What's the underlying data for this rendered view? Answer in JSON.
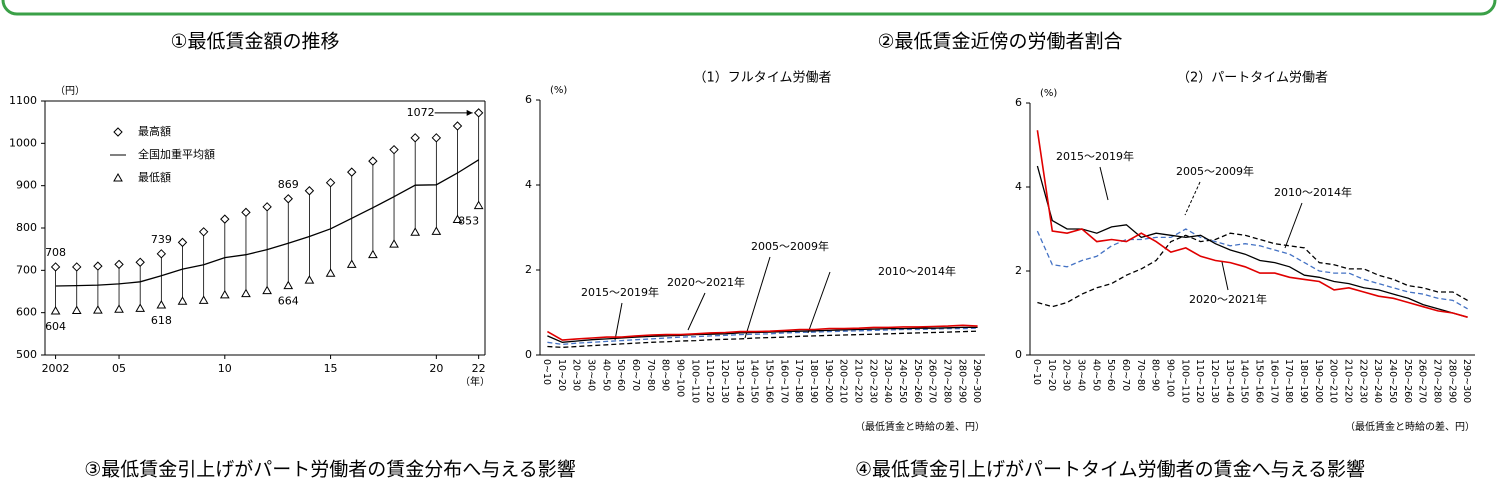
{
  "headings": [
    "①最低賃金額の推移",
    "②最低賃金近傍の労働者割合",
    "③最低賃金引上げがパート労働者の賃金分布へ与える影響",
    "④最低賃金引上げがパートタイム労働者の賃金へ与える影響"
  ],
  "chart_data": [
    {
      "type": "line",
      "y_unit": "（円）",
      "x_unit": "（年）",
      "x": [
        2002,
        2003,
        2004,
        2005,
        2006,
        2007,
        2008,
        2009,
        2010,
        2011,
        2012,
        2013,
        2014,
        2015,
        2016,
        2017,
        2018,
        2019,
        2020,
        2021,
        2022
      ],
      "xlim": [
        2001.5,
        2022.3
      ],
      "xticks": [
        {
          "value": 2002,
          "label": "2002"
        },
        {
          "value": 2005,
          "label": "05"
        },
        {
          "value": 2010,
          "label": "10"
        },
        {
          "value": 2015,
          "label": "15"
        },
        {
          "value": 2020,
          "label": "20"
        },
        {
          "value": 2022,
          "label": "22"
        }
      ],
      "ylim": [
        500,
        1100
      ],
      "yticks": [
        500,
        600,
        700,
        800,
        900,
        1000,
        1100
      ],
      "series": [
        {
          "name": "最高額",
          "color": "#000000",
          "marker": "diamond",
          "values": [
            708,
            708,
            710,
            714,
            719,
            739,
            766,
            791,
            821,
            837,
            850,
            869,
            888,
            907,
            932,
            958,
            985,
            1013,
            1013,
            1041,
            1072
          ],
          "value_labels": [
            "708",
            null,
            null,
            null,
            null,
            "739",
            null,
            null,
            null,
            null,
            null,
            "869",
            null,
            null,
            null,
            null,
            null,
            null,
            null,
            null,
            "1072"
          ]
        },
        {
          "name": "全国加重平均額",
          "color": "#000000",
          "marker": "line",
          "values": [
            663,
            664,
            665,
            668,
            673,
            687,
            703,
            713,
            730,
            737,
            749,
            764,
            780,
            798,
            823,
            848,
            874,
            901,
            902,
            930,
            961
          ]
        },
        {
          "name": "最低額",
          "color": "#000000",
          "marker": "triangle",
          "values": [
            604,
            605,
            606,
            608,
            610,
            618,
            627,
            629,
            642,
            645,
            652,
            664,
            677,
            693,
            714,
            737,
            762,
            790,
            792,
            820,
            853
          ],
          "value_labels": [
            "604",
            null,
            null,
            null,
            null,
            "618",
            null,
            null,
            null,
            null,
            null,
            "664",
            null,
            null,
            null,
            null,
            null,
            null,
            null,
            null,
            "853"
          ]
        }
      ]
    },
    {
      "type": "line",
      "title": "（1）フルタイム労働者",
      "y_unit": "(%)",
      "x_unit": "（最低賃金と時給の差、円）",
      "categories": [
        "0~10",
        "10~20",
        "20~30",
        "30~40",
        "40~50",
        "50~60",
        "60~70",
        "70~80",
        "80~90",
        "90~100",
        "100~110",
        "110~120",
        "120~130",
        "130~140",
        "140~150",
        "150~160",
        "160~170",
        "170~180",
        "180~190",
        "190~200",
        "200~210",
        "210~220",
        "220~230",
        "230~240",
        "240~250",
        "250~260",
        "260~270",
        "270~280",
        "280~290",
        "290~300"
      ],
      "ylim": [
        0,
        6
      ],
      "yticks": [
        0,
        2,
        4,
        6
      ],
      "series": [
        {
          "name": "2005～2009年",
          "color": "#000000",
          "dash": true,
          "values": [
            0.2,
            0.18,
            0.2,
            0.22,
            0.24,
            0.26,
            0.28,
            0.3,
            0.31,
            0.33,
            0.34,
            0.36,
            0.37,
            0.38,
            0.4,
            0.41,
            0.42,
            0.44,
            0.45,
            0.46,
            0.47,
            0.48,
            0.49,
            0.5,
            0.51,
            0.52,
            0.53,
            0.54,
            0.55,
            0.56
          ]
        },
        {
          "name": "2010～2014年",
          "color": "#4472c4",
          "dash": true,
          "values": [
            0.3,
            0.25,
            0.28,
            0.3,
            0.32,
            0.34,
            0.36,
            0.38,
            0.4,
            0.42,
            0.43,
            0.45,
            0.46,
            0.48,
            0.49,
            0.5,
            0.52,
            0.53,
            0.54,
            0.55,
            0.56,
            0.57,
            0.58,
            0.59,
            0.6,
            0.6,
            0.61,
            0.62,
            0.62,
            0.63
          ]
        },
        {
          "name": "2015～2019年",
          "color": "#000000",
          "dash": false,
          "values": [
            0.45,
            0.3,
            0.33,
            0.36,
            0.38,
            0.4,
            0.42,
            0.44,
            0.45,
            0.46,
            0.48,
            0.49,
            0.5,
            0.52,
            0.53,
            0.54,
            0.55,
            0.56,
            0.57,
            0.58,
            0.59,
            0.6,
            0.61,
            0.62,
            0.62,
            0.63,
            0.63,
            0.64,
            0.65,
            0.65
          ]
        },
        {
          "name": "2020～2021年",
          "color": "#e00000",
          "dash": false,
          "values": [
            0.55,
            0.35,
            0.38,
            0.4,
            0.42,
            0.42,
            0.45,
            0.47,
            0.48,
            0.48,
            0.5,
            0.52,
            0.53,
            0.55,
            0.55,
            0.56,
            0.58,
            0.6,
            0.6,
            0.62,
            0.62,
            0.63,
            0.65,
            0.65,
            0.66,
            0.66,
            0.67,
            0.68,
            0.7,
            0.68
          ]
        }
      ]
    },
    {
      "type": "line",
      "title": "（2）パートタイム労働者",
      "y_unit": "(%)",
      "x_unit": "（最低賃金と時給の差、円）",
      "categories": [
        "0~10",
        "10~20",
        "20~30",
        "30~40",
        "40~50",
        "50~60",
        "60~70",
        "70~80",
        "80~90",
        "90~100",
        "100~110",
        "110~120",
        "120~130",
        "130~140",
        "140~150",
        "150~160",
        "160~170",
        "170~180",
        "180~190",
        "190~200",
        "200~210",
        "210~220",
        "220~230",
        "230~240",
        "240~250",
        "250~260",
        "260~270",
        "270~280",
        "280~290",
        "290~300"
      ],
      "ylim": [
        0,
        6
      ],
      "yticks": [
        0,
        2,
        4,
        6
      ],
      "series": [
        {
          "name": "2005～2009年",
          "color": "#000000",
          "dash": true,
          "values": [
            1.25,
            1.15,
            1.25,
            1.45,
            1.6,
            1.7,
            1.9,
            2.05,
            2.25,
            2.7,
            2.85,
            2.7,
            2.75,
            2.9,
            2.85,
            2.75,
            2.65,
            2.6,
            2.55,
            2.2,
            2.15,
            2.05,
            2.05,
            1.9,
            1.8,
            1.65,
            1.6,
            1.5,
            1.5,
            1.3
          ]
        },
        {
          "name": "2010～2014年",
          "color": "#4472c4",
          "dash": true,
          "values": [
            2.95,
            2.15,
            2.1,
            2.25,
            2.35,
            2.6,
            2.75,
            2.75,
            2.8,
            2.8,
            3.0,
            2.8,
            2.7,
            2.6,
            2.65,
            2.6,
            2.5,
            2.4,
            2.2,
            2.0,
            1.95,
            1.95,
            1.8,
            1.7,
            1.6,
            1.5,
            1.45,
            1.35,
            1.3,
            1.1
          ]
        },
        {
          "name": "2015～2019年",
          "color": "#000000",
          "dash": false,
          "values": [
            4.5,
            3.2,
            3.0,
            3.0,
            2.9,
            3.05,
            3.1,
            2.8,
            2.9,
            2.85,
            2.8,
            2.85,
            2.65,
            2.5,
            2.4,
            2.25,
            2.2,
            2.1,
            1.9,
            1.85,
            1.75,
            1.7,
            1.6,
            1.55,
            1.45,
            1.35,
            1.2,
            1.1,
            1.0,
            0.9
          ]
        },
        {
          "name": "2020～2021年",
          "color": "#e00000",
          "dash": false,
          "values": [
            5.35,
            2.95,
            2.9,
            3.0,
            2.7,
            2.75,
            2.7,
            2.9,
            2.7,
            2.45,
            2.55,
            2.35,
            2.25,
            2.2,
            2.1,
            1.95,
            1.95,
            1.85,
            1.8,
            1.75,
            1.55,
            1.6,
            1.5,
            1.4,
            1.35,
            1.25,
            1.15,
            1.05,
            1.0,
            0.9
          ]
        }
      ]
    }
  ]
}
